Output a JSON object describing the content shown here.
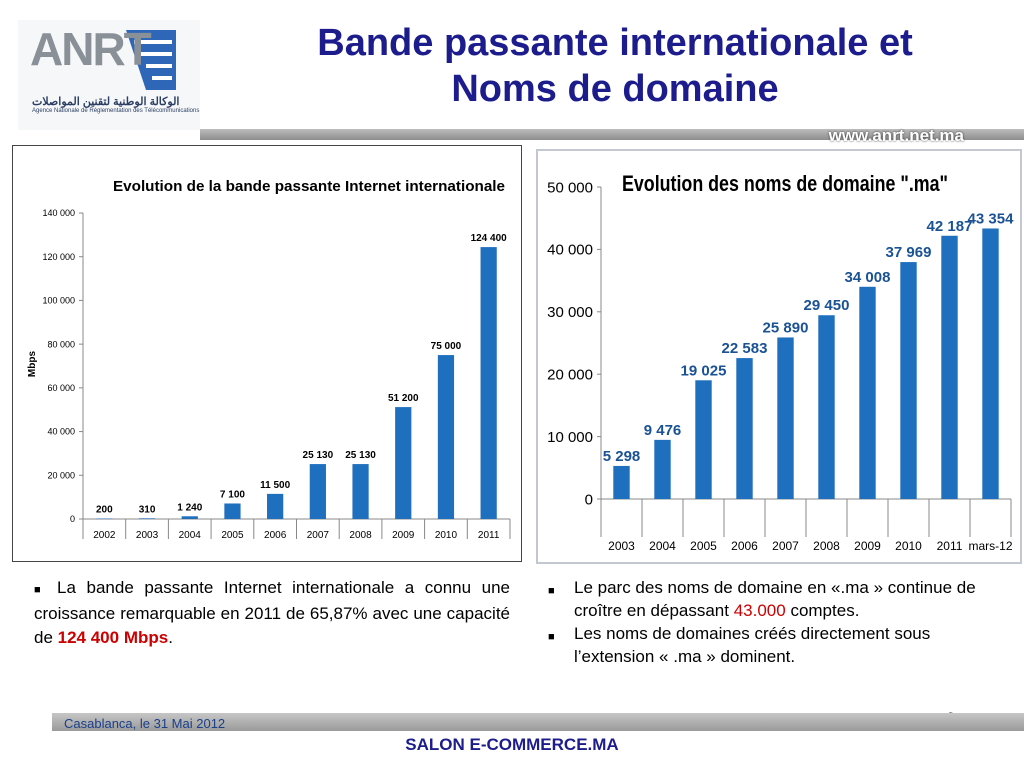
{
  "header": {
    "title_line1": "Bande passante internationale et",
    "title_line2": "Noms de domaine",
    "url": "www.anrt.net.ma",
    "logo_text": "ANRT",
    "logo_ar": "الوكالة الوطنية لتقنين المواصلات",
    "logo_fr": "Agence Nationale de Réglementation des Télécommunications"
  },
  "colors": {
    "bar": "#1f6fbf",
    "title": "#1c1c8c",
    "highlight": "#cc0000"
  },
  "chart_data": [
    {
      "type": "bar",
      "title": "Evolution de la bande passante Internet internationale",
      "ylabel": "Mbps",
      "xlabel": "",
      "categories": [
        "2002",
        "2003",
        "2004",
        "2005",
        "2006",
        "2007",
        "2008",
        "2009",
        "2010",
        "2011"
      ],
      "values": [
        200,
        310,
        1240,
        7100,
        11500,
        25130,
        25130,
        51200,
        75000,
        124400
      ],
      "value_labels": [
        "200",
        "310",
        "1 240",
        "7 100",
        "11 500",
        "25 130",
        "25 130",
        "51 200",
        "75 000",
        "124 400"
      ],
      "ylim": [
        0,
        140000
      ],
      "yticks": [
        "0",
        "20 000",
        "40 000",
        "60 000",
        "80 000",
        "100 000",
        "120 000",
        "140 000"
      ]
    },
    {
      "type": "bar",
      "title": "Evolution des noms  de domaine \".ma\"",
      "xlabel": "",
      "ylabel": "",
      "categories": [
        "2003",
        "2004",
        "2005",
        "2006",
        "2007",
        "2008",
        "2009",
        "2010",
        "2011",
        "mars-12"
      ],
      "values": [
        5298,
        9476,
        19025,
        22583,
        25890,
        29450,
        34008,
        37969,
        42187,
        43354
      ],
      "value_labels": [
        "5 298",
        "9 476",
        "19 025",
        "22 583",
        "25 890",
        "29 450",
        "34 008",
        "37 969",
        "42 187",
        "43 354"
      ],
      "ylim": [
        0,
        50000
      ],
      "yticks": [
        "0",
        "10 000",
        "20 000",
        "30 000",
        "40 000",
        "50 000"
      ]
    }
  ],
  "body": {
    "left_text_1": "La bande passante Internet internationale a connu une croissance remarquable en 2011 de 65,87% avec une capacité de ",
    "left_highlight": "124 400 Mbps",
    "left_text_end": ".",
    "right_b1_text": "Le parc des noms de domaine en «.ma » continue de croître en dépassant  ",
    "right_b1_highlight": "43.000",
    "right_b1_end": " comptes.",
    "right_b2_text": "Les noms de domaines créés directement sous l’extension « .ma » dominent."
  },
  "footer": {
    "date": "Casablanca, le 31 Mai 2012",
    "event": "SALON E-COMMERCE.MA",
    "page_number": "8"
  }
}
